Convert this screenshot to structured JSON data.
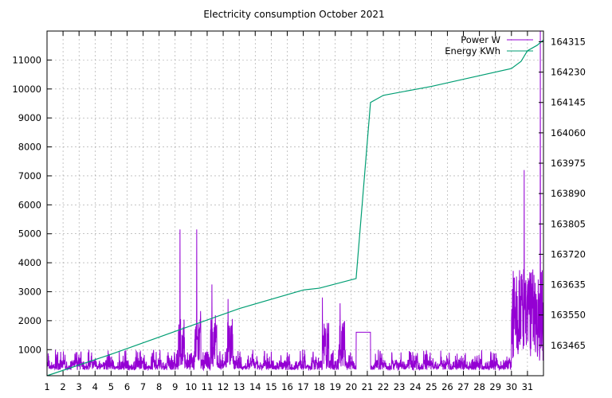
{
  "chart_data": {
    "type": "line",
    "title": "Electricity consumption October 2021",
    "x": {
      "ticks": [
        1,
        2,
        3,
        4,
        5,
        6,
        7,
        8,
        9,
        10,
        11,
        12,
        13,
        14,
        15,
        16,
        17,
        18,
        19,
        20,
        21,
        22,
        23,
        24,
        25,
        26,
        27,
        28,
        29,
        30,
        31
      ],
      "range": [
        1,
        32
      ]
    },
    "y_left": {
      "ticks": [
        1000,
        2000,
        3000,
        4000,
        5000,
        6000,
        7000,
        8000,
        9000,
        10000,
        11000
      ],
      "range": [
        100,
        12000
      ]
    },
    "y_right": {
      "ticks": [
        163465,
        163550,
        163635,
        163720,
        163805,
        163890,
        163975,
        164060,
        164145,
        164230,
        164315
      ],
      "range": [
        163380,
        164345
      ]
    },
    "grid": true,
    "legend_position": "top-right",
    "series": [
      {
        "name": "Power W",
        "axis": "left",
        "color": "#9400d3",
        "peaks": [
          {
            "x": 9.3,
            "y": 5150
          },
          {
            "x": 10.35,
            "y": 5150
          },
          {
            "x": 11.3,
            "y": 3250
          },
          {
            "x": 12.3,
            "y": 2750
          },
          {
            "x": 18.2,
            "y": 2800
          },
          {
            "x": 19.3,
            "y": 2600
          },
          {
            "x": 30.8,
            "y": 7200
          },
          {
            "x": 31.8,
            "y": 12000
          }
        ],
        "baseline_range": [
          300,
          1000
        ]
      },
      {
        "name": "Energy KWh",
        "axis": "right",
        "color": "#009e73",
        "points": [
          [
            1,
            163380
          ],
          [
            5,
            163440
          ],
          [
            9,
            163504
          ],
          [
            13,
            163568
          ],
          [
            17,
            163620
          ],
          [
            18,
            163625
          ],
          [
            20.3,
            163652
          ],
          [
            21.2,
            164145
          ],
          [
            22,
            164165
          ],
          [
            25,
            164190
          ],
          [
            28,
            164220
          ],
          [
            30,
            164240
          ],
          [
            30.6,
            164260
          ],
          [
            31,
            164290
          ],
          [
            31.6,
            164305
          ],
          [
            32,
            164320
          ]
        ]
      }
    ]
  }
}
